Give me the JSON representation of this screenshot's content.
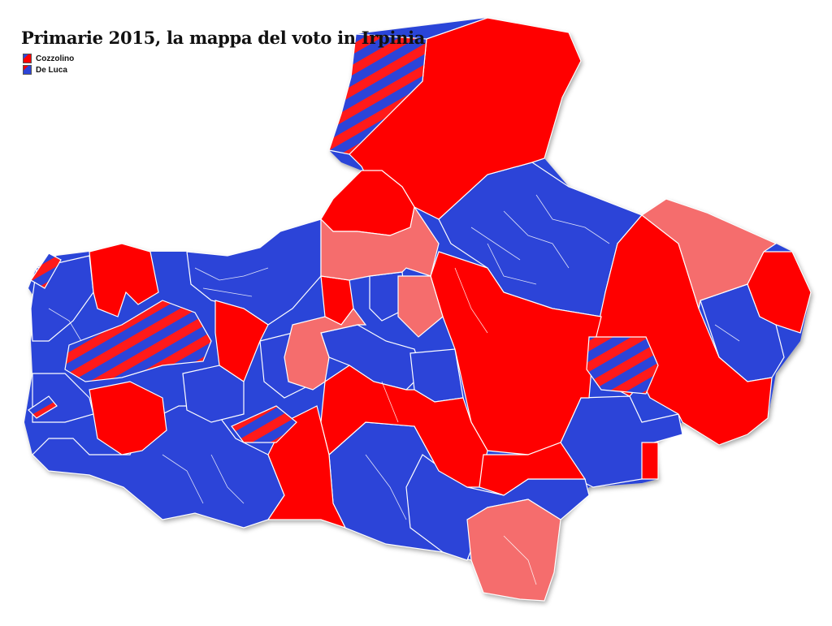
{
  "title": "Primarie 2015, la mappa del voto in Irpinia",
  "legend": [
    {
      "label": "Cozzolino",
      "color": "#ff0000"
    },
    {
      "label": "De Luca",
      "color": "#2c44d8"
    }
  ],
  "colors": {
    "cozzolino": "#ff0000",
    "de_luca": "#2c44d8",
    "light_red": "#f56d6d",
    "border": "#ffffff"
  }
}
